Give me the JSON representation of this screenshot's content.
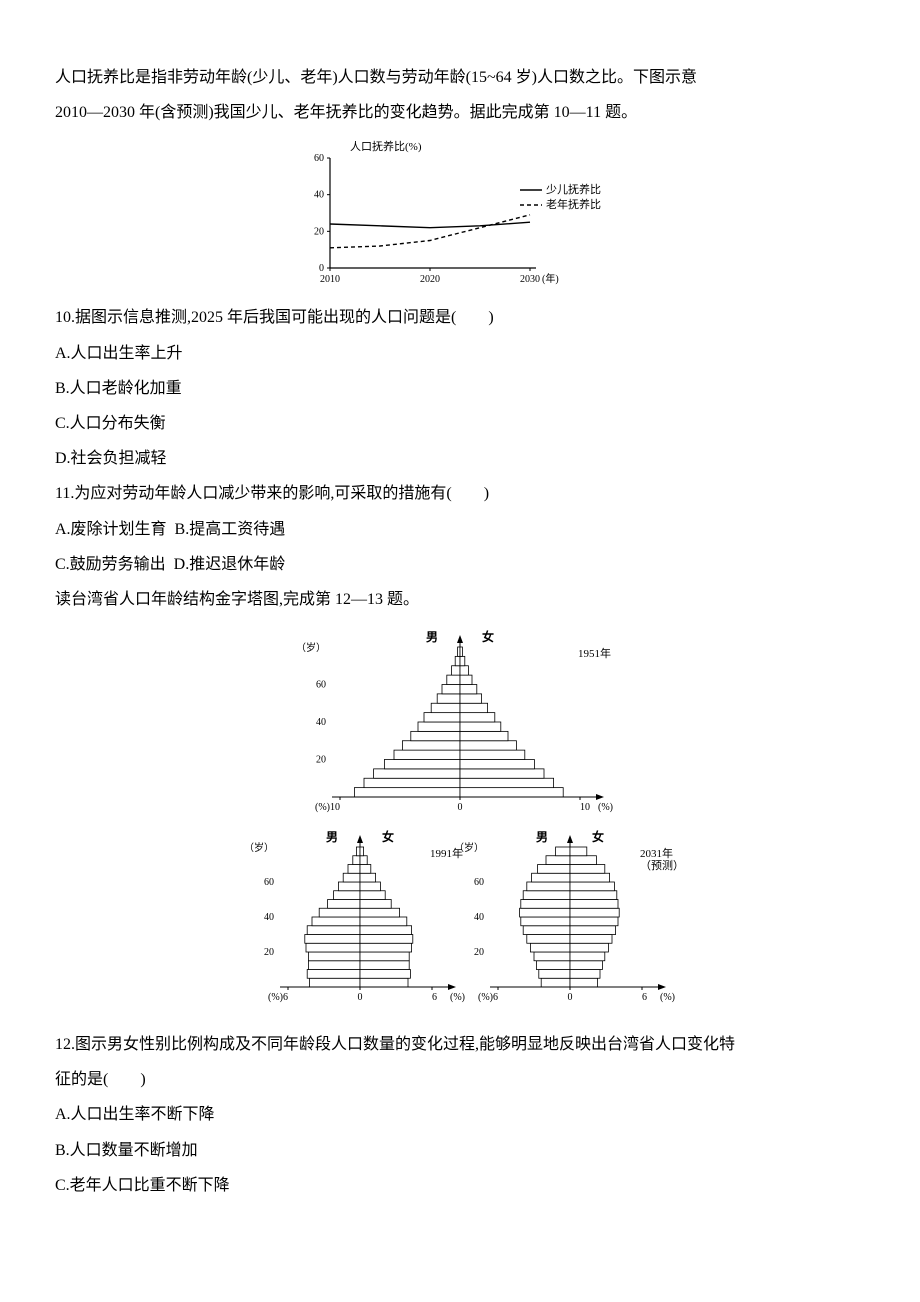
{
  "intro1": "人口抚养比是指非劳动年龄(少儿、老年)人口数与劳动年龄(15~64 岁)人口数之比。下图示意",
  "intro2": "2010—2030 年(含预测)我国少儿、老年抚养比的变化趋势。据此完成第 10—11 题。",
  "chart1": {
    "title": "人口抚养比(%)",
    "x_label": "(年)",
    "x_ticks": [
      "2010",
      "2020",
      "2030"
    ],
    "y_ticks": [
      "0",
      "20",
      "40",
      "60"
    ],
    "ylim": [
      0,
      60
    ],
    "xlim": [
      2010,
      2030
    ],
    "legend": [
      "少儿抚养比",
      "老年抚养比"
    ],
    "series": {
      "child": {
        "color": "#000",
        "dash": "none",
        "points": [
          [
            2010,
            24
          ],
          [
            2015,
            23
          ],
          [
            2020,
            22
          ],
          [
            2025,
            23
          ],
          [
            2030,
            25
          ]
        ]
      },
      "elder": {
        "color": "#000",
        "dash": "4,3",
        "points": [
          [
            2010,
            11
          ],
          [
            2015,
            12
          ],
          [
            2020,
            15
          ],
          [
            2025,
            22
          ],
          [
            2030,
            29
          ]
        ]
      }
    },
    "background": "#ffffff",
    "axis_color": "#000000",
    "tick_font_size": 10,
    "title_font_size": 11
  },
  "q10": {
    "stem": "10.据图示信息推测,2025 年后我国可能出现的人口问题是(　　)",
    "A": "A.人口出生率上升",
    "B": "B.人口老龄化加重",
    "C": "C.人口分布失衡",
    "D": "D.社会负担减轻"
  },
  "q11": {
    "stem": "11.为应对劳动年龄人口减少带来的影响,可采取的措施有(　　)",
    "AB": "A.废除计划生育  B.提高工资待遇",
    "CD": "C.鼓励劳务输出  D.推迟退休年龄"
  },
  "intro3": "读台湾省人口年龄结构金字塔图,完成第 12—13 题。",
  "pyramid": {
    "labels": {
      "male": "男",
      "female": "女",
      "age_unit": "（岁）",
      "pct_unit": "(%)"
    },
    "years": {
      "a": "1951年",
      "b": "1991年",
      "c_l1": "2031年",
      "c_l2": "（预测）"
    },
    "age_ticks": [
      "20",
      "40",
      "60"
    ],
    "age_values": [
      20,
      40,
      60
    ],
    "top": {
      "x_ticks": [
        "10",
        "0",
        "10"
      ],
      "xmax": 10
    },
    "bottom": {
      "x_ticks": [
        "6",
        "0",
        "6"
      ],
      "xmax": 6
    },
    "colors": {
      "fill": "#ffffff",
      "stroke": "#000000"
    },
    "bar_step": 5,
    "data_1951": {
      "male": [
        8.8,
        8.0,
        7.2,
        6.3,
        5.5,
        4.8,
        4.1,
        3.5,
        3.0,
        2.4,
        1.9,
        1.5,
        1.1,
        0.7,
        0.4,
        0.2
      ],
      "female": [
        8.6,
        7.8,
        7.0,
        6.2,
        5.4,
        4.7,
        4.0,
        3.4,
        2.9,
        2.3,
        1.8,
        1.4,
        1.0,
        0.7,
        0.4,
        0.2
      ]
    },
    "data_1991": {
      "male": [
        4.2,
        4.4,
        4.3,
        4.3,
        4.5,
        4.6,
        4.4,
        4.0,
        3.4,
        2.7,
        2.2,
        1.8,
        1.4,
        1.0,
        0.6,
        0.3
      ],
      "female": [
        4.0,
        4.2,
        4.1,
        4.1,
        4.3,
        4.4,
        4.3,
        3.9,
        3.3,
        2.6,
        2.1,
        1.7,
        1.3,
        0.9,
        0.6,
        0.3
      ]
    },
    "data_2031": {
      "male": [
        2.4,
        2.6,
        2.8,
        3.0,
        3.3,
        3.6,
        3.9,
        4.1,
        4.2,
        4.1,
        3.9,
        3.6,
        3.2,
        2.7,
        2.0,
        1.2
      ],
      "female": [
        2.3,
        2.5,
        2.7,
        2.9,
        3.2,
        3.5,
        3.8,
        4.0,
        4.1,
        4.0,
        3.9,
        3.7,
        3.3,
        2.9,
        2.2,
        1.4
      ]
    }
  },
  "q12": {
    "stem1": "12.图示男女性别比例构成及不同年龄段人口数量的变化过程,能够明显地反映出台湾省人口变化特",
    "stem2": "征的是(　　)",
    "A": "A.人口出生率不断下降",
    "B": "B.人口数量不断增加",
    "C": "C.老年人口比重不断下降"
  }
}
